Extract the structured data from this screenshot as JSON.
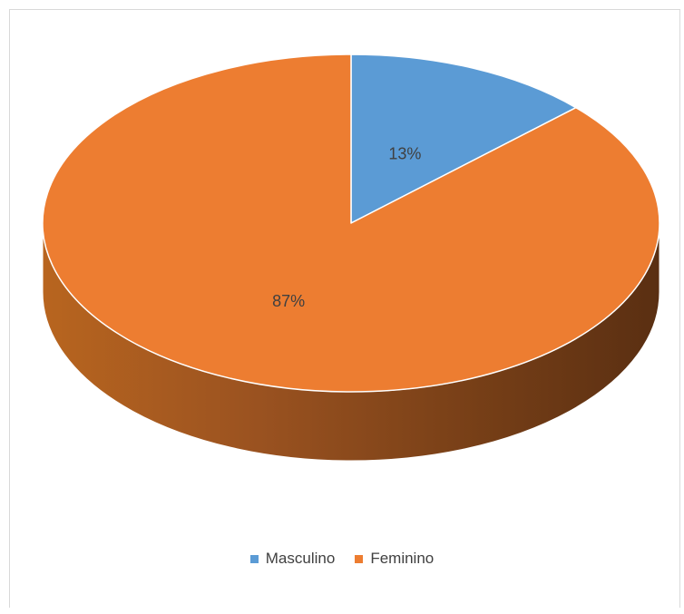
{
  "chart_data": {
    "type": "pie",
    "style": "3d",
    "categories": [
      "Masculino",
      "Feminino"
    ],
    "values": [
      13,
      87
    ],
    "labels": [
      "13%",
      "87%"
    ],
    "colors": [
      "#5b9bd5",
      "#ed7d31"
    ],
    "legend": "bottom"
  }
}
